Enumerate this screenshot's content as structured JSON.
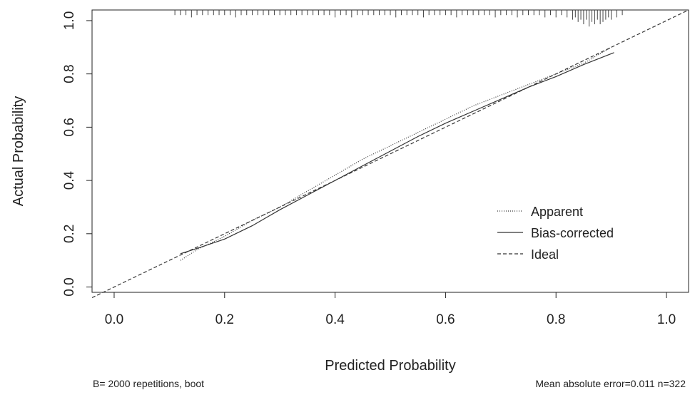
{
  "chart_data": {
    "type": "line",
    "xlabel": "Predicted Probability",
    "ylabel": "Actual Probability",
    "xlim": [
      -0.04,
      1.04
    ],
    "ylim": [
      -0.02,
      1.04
    ],
    "xticks": [
      0.0,
      0.2,
      0.4,
      0.6,
      0.8,
      1.0
    ],
    "yticks": [
      0.0,
      0.2,
      0.4,
      0.6,
      0.8,
      1.0
    ],
    "xtick_labels": [
      "0.0",
      "0.2",
      "0.4",
      "0.6",
      "0.8",
      "1.0"
    ],
    "ytick_labels": [
      "0.0",
      "0.2",
      "0.4",
      "0.6",
      "0.8",
      "1.0"
    ],
    "grid": false,
    "legend_position": "bottom-right",
    "series": [
      {
        "name": "Apparent",
        "style": "dotted",
        "x": [
          0.12,
          0.15,
          0.2,
          0.25,
          0.3,
          0.35,
          0.4,
          0.45,
          0.5,
          0.55,
          0.6,
          0.65,
          0.7,
          0.75,
          0.8,
          0.85,
          0.9
        ],
        "y": [
          0.1,
          0.14,
          0.19,
          0.25,
          0.3,
          0.36,
          0.42,
          0.48,
          0.53,
          0.58,
          0.63,
          0.68,
          0.72,
          0.76,
          0.8,
          0.84,
          0.9
        ]
      },
      {
        "name": "Bias-corrected",
        "style": "solid",
        "x": [
          0.12,
          0.15,
          0.2,
          0.25,
          0.3,
          0.35,
          0.4,
          0.45,
          0.5,
          0.55,
          0.6,
          0.65,
          0.7,
          0.75,
          0.8,
          0.85,
          0.905
        ],
        "y": [
          0.125,
          0.145,
          0.18,
          0.23,
          0.29,
          0.345,
          0.4,
          0.455,
          0.51,
          0.565,
          0.615,
          0.66,
          0.705,
          0.75,
          0.79,
          0.835,
          0.88
        ]
      },
      {
        "name": "Ideal",
        "style": "dashed",
        "x": [
          -0.04,
          1.04
        ],
        "y": [
          -0.04,
          1.04
        ]
      }
    ],
    "rug": {
      "position": "top",
      "x": [
        0.11,
        0.12,
        0.13,
        0.14,
        0.15,
        0.16,
        0.17,
        0.18,
        0.19,
        0.2,
        0.21,
        0.22,
        0.23,
        0.24,
        0.25,
        0.26,
        0.27,
        0.28,
        0.29,
        0.3,
        0.31,
        0.32,
        0.33,
        0.34,
        0.35,
        0.36,
        0.37,
        0.38,
        0.39,
        0.4,
        0.41,
        0.42,
        0.43,
        0.44,
        0.45,
        0.46,
        0.47,
        0.48,
        0.49,
        0.5,
        0.51,
        0.52,
        0.53,
        0.54,
        0.55,
        0.56,
        0.57,
        0.58,
        0.59,
        0.6,
        0.61,
        0.62,
        0.63,
        0.64,
        0.65,
        0.66,
        0.67,
        0.68,
        0.69,
        0.7,
        0.71,
        0.72,
        0.73,
        0.74,
        0.75,
        0.76,
        0.77,
        0.78,
        0.79,
        0.8,
        0.81,
        0.82,
        0.83,
        0.835,
        0.84,
        0.845,
        0.85,
        0.855,
        0.86,
        0.865,
        0.87,
        0.875,
        0.88,
        0.885,
        0.89,
        0.895,
        0.9,
        0.91,
        0.92
      ],
      "counts": [
        1,
        1,
        1,
        2,
        1,
        1,
        1,
        1,
        1,
        1,
        1,
        2,
        1,
        1,
        1,
        1,
        1,
        1,
        1,
        1,
        1,
        1,
        1,
        1,
        1,
        1,
        1,
        1,
        1,
        2,
        1,
        1,
        2,
        1,
        1,
        1,
        1,
        1,
        1,
        1,
        2,
        1,
        1,
        1,
        1,
        2,
        1,
        1,
        1,
        1,
        1,
        2,
        1,
        1,
        1,
        1,
        1,
        1,
        2,
        1,
        1,
        1,
        2,
        1,
        1,
        1,
        1,
        2,
        1,
        2,
        1,
        2,
        3,
        2,
        4,
        3,
        5,
        3,
        6,
        4,
        5,
        3,
        5,
        4,
        3,
        2,
        3,
        2,
        1
      ]
    }
  },
  "footer": {
    "left": "B= 2000 repetitions, boot",
    "right": "Mean absolute error=0.011 n=322"
  }
}
